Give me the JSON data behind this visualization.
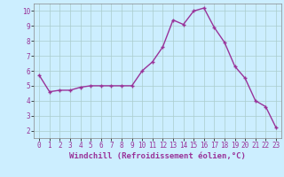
{
  "x": [
    0,
    1,
    2,
    3,
    4,
    5,
    6,
    7,
    8,
    9,
    10,
    11,
    12,
    13,
    14,
    15,
    16,
    17,
    18,
    19,
    20,
    21,
    22,
    23
  ],
  "y": [
    5.7,
    4.6,
    4.7,
    4.7,
    4.9,
    5.0,
    5.0,
    5.0,
    5.0,
    5.0,
    6.0,
    6.6,
    7.6,
    9.4,
    9.1,
    10.0,
    10.2,
    8.9,
    7.9,
    6.3,
    5.5,
    4.0,
    3.6,
    2.2
  ],
  "line_color": "#993399",
  "marker": "+",
  "marker_size": 3,
  "marker_lw": 1.0,
  "line_width": 1.0,
  "bg_color": "#cceeff",
  "grid_color": "#aacccc",
  "xlabel": "Windchill (Refroidissement éolien,°C)",
  "xlabel_fontsize": 6.5,
  "tick_fontsize": 5.5,
  "ylim": [
    1.5,
    10.5
  ],
  "xlim": [
    -0.5,
    23.5
  ],
  "yticks": [
    2,
    3,
    4,
    5,
    6,
    7,
    8,
    9,
    10
  ],
  "xticks": [
    0,
    1,
    2,
    3,
    4,
    5,
    6,
    7,
    8,
    9,
    10,
    11,
    12,
    13,
    14,
    15,
    16,
    17,
    18,
    19,
    20,
    21,
    22,
    23
  ]
}
